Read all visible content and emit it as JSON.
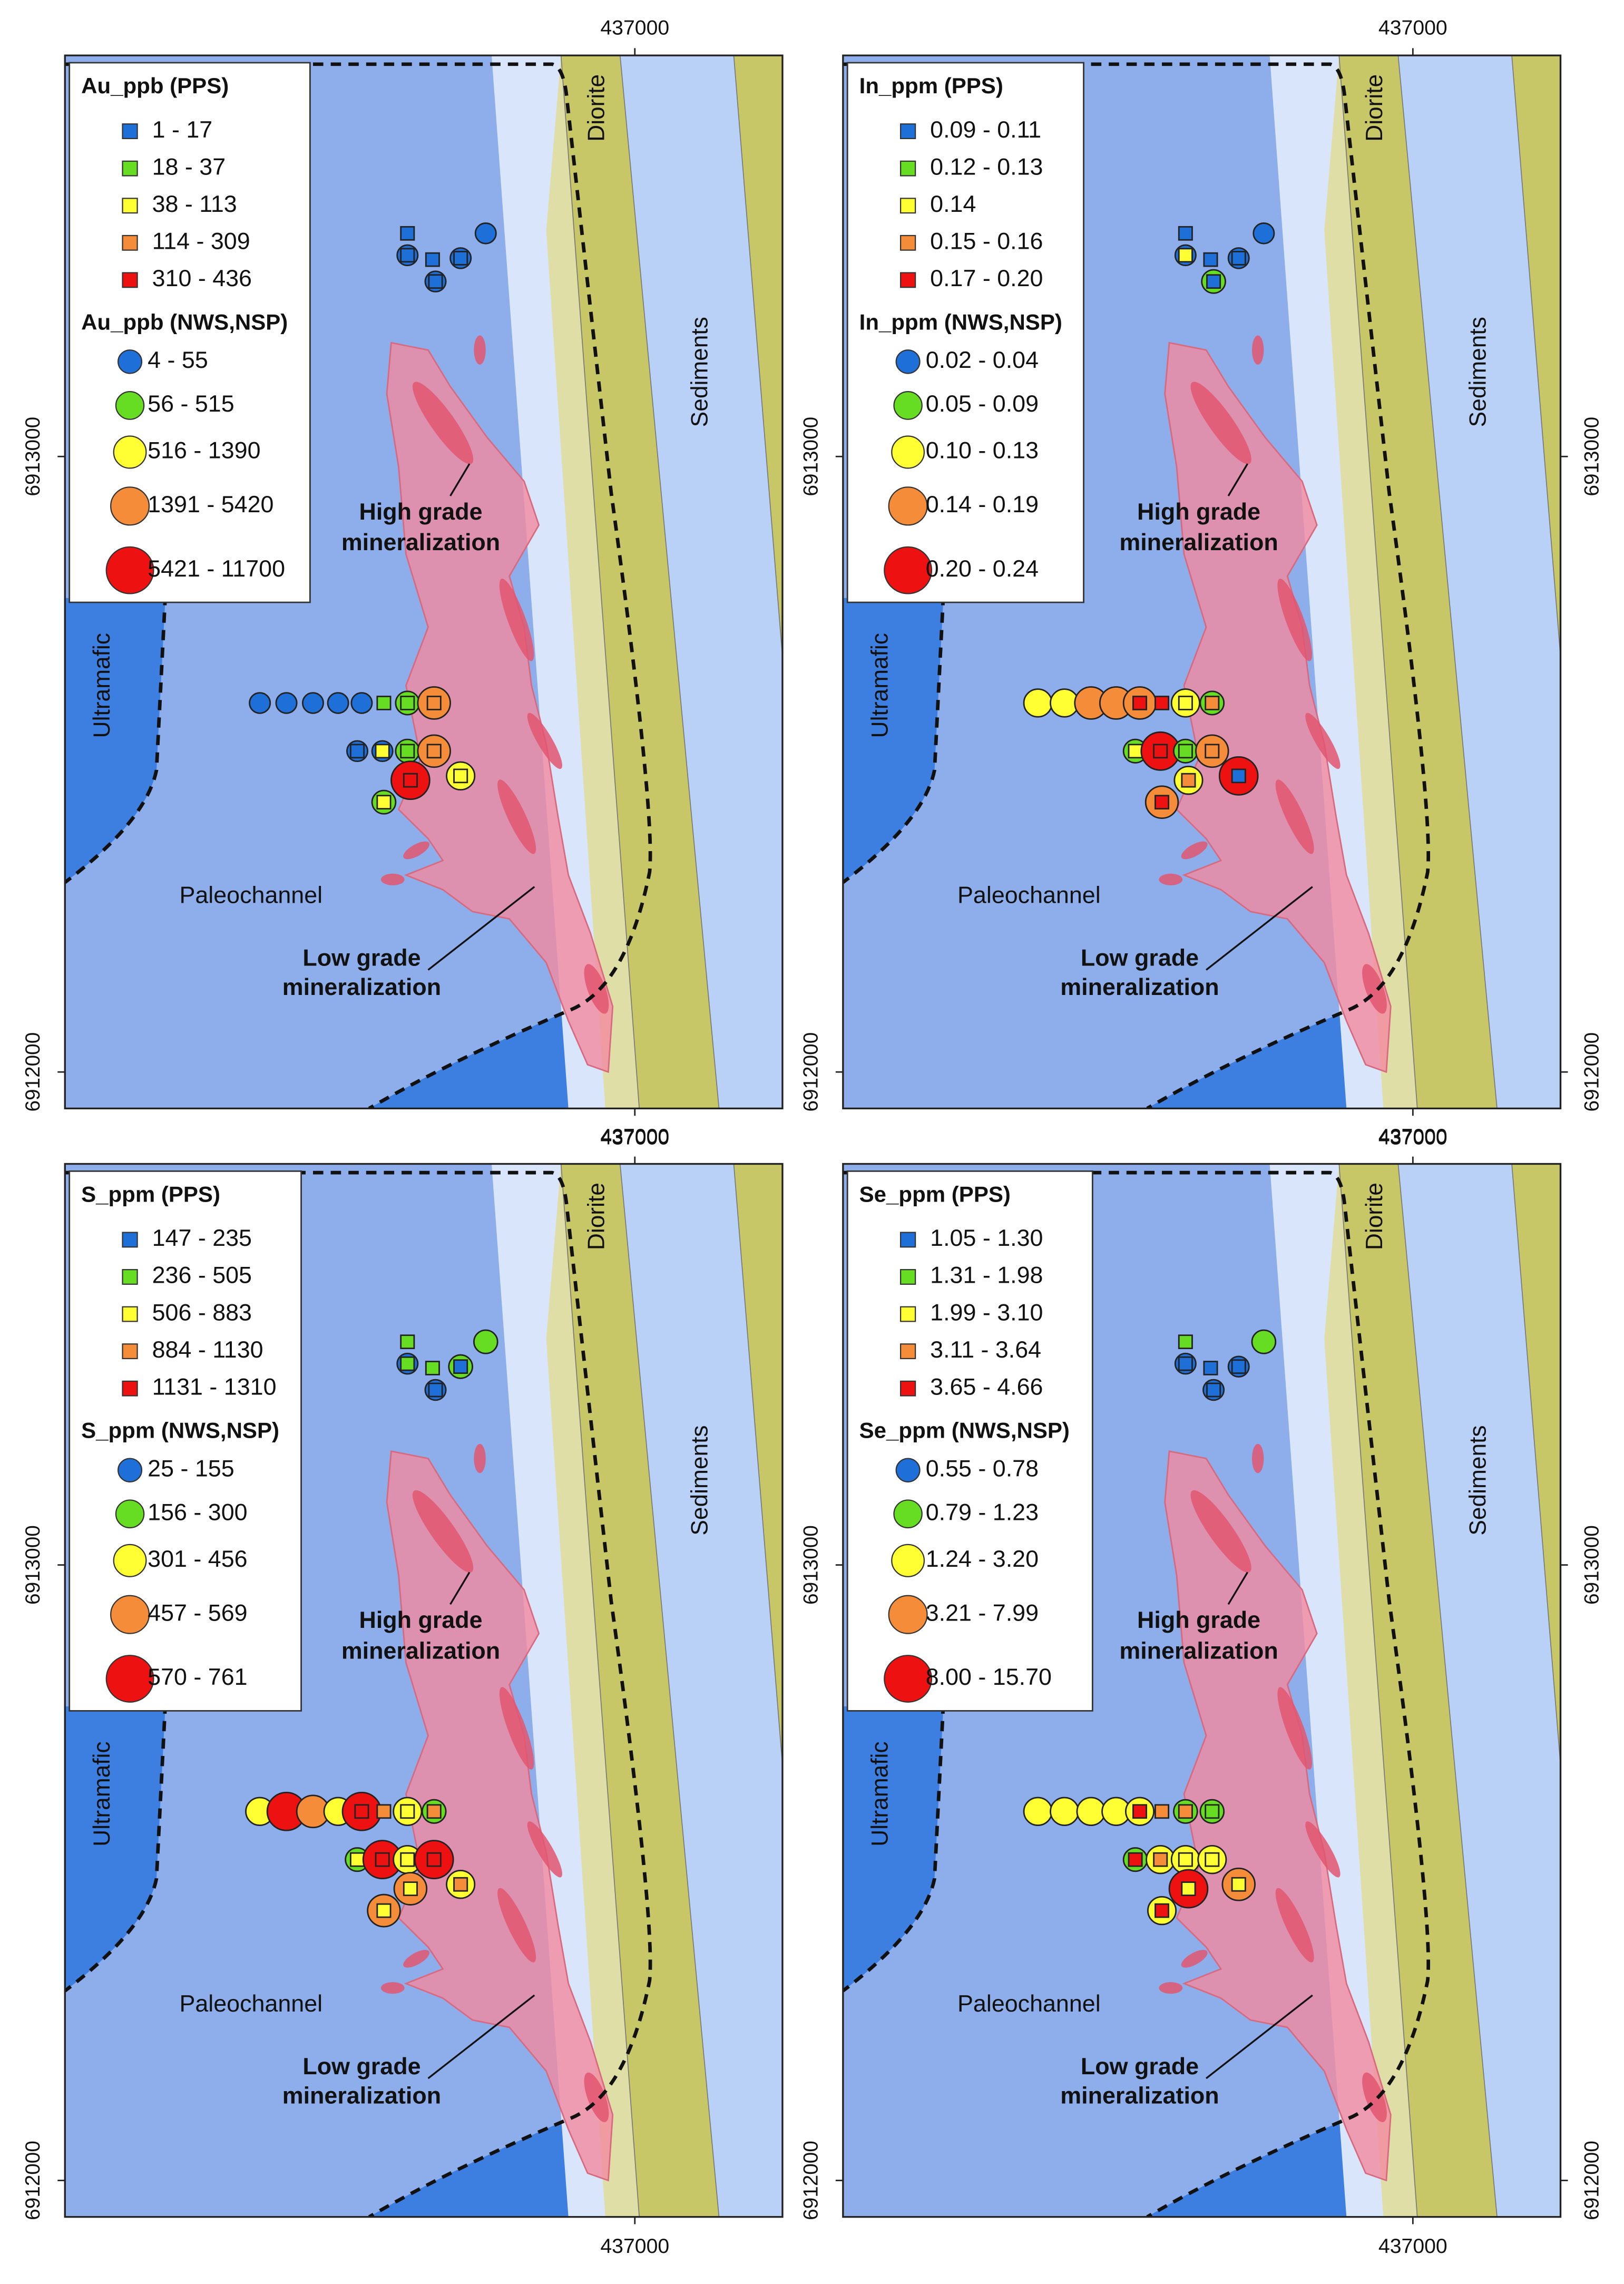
{
  "class_colors": [
    "#1f6fd8",
    "#66dd22",
    "#ffff33",
    "#f58c3a",
    "#ee1111"
  ],
  "panels": [
    {
      "legend_pps": {
        "title": "Au_ppb (PPS)",
        "items": [
          "1 - 17",
          "18 - 37",
          "38 - 113",
          "114 - 309",
          "310 - 436"
        ]
      },
      "legend_nws": {
        "title": "Au_ppb (NWS,NSP)",
        "items": [
          "4 - 55",
          "56 - 515",
          "516 - 1390",
          "1391 - 5420",
          "5421 - 11700"
        ]
      }
    },
    {
      "legend_pps": {
        "title": "In_ppm (PPS)",
        "items": [
          "0.09 - 0.11",
          "0.12 - 0.13",
          "0.14",
          "0.15 - 0.16",
          "0.17 - 0.20"
        ]
      },
      "legend_nws": {
        "title": "In_ppm (NWS,NSP)",
        "items": [
          "0.02 - 0.04",
          "0.05 - 0.09",
          "0.10 - 0.13",
          "0.14 - 0.19",
          "0.20 - 0.24"
        ]
      }
    },
    {
      "legend_pps": {
        "title": "S_ppm (PPS)",
        "items": [
          "147 - 235",
          "236 - 505",
          "506 - 883",
          "884 - 1130",
          "1131 - 1310"
        ]
      },
      "legend_nws": {
        "title": "S_ppm (NWS,NSP)",
        "items": [
          "25 - 155",
          "156 - 300",
          "301 - 456",
          "457 - 569",
          "570 - 761"
        ]
      }
    },
    {
      "legend_pps": {
        "title": "Se_ppm (PPS)",
        "items": [
          "1.05 - 1.30",
          "1.31 - 1.98",
          "1.99 - 3.10",
          "3.11 - 3.64",
          "3.65 - 4.66"
        ]
      },
      "legend_nws": {
        "title": "Se_ppm (NWS,NSP)",
        "items": [
          "0.55 - 0.78",
          "0.79 - 1.23",
          "1.24 - 3.20",
          "3.21 - 7.99",
          "8.00 - 15.70"
        ]
      }
    }
  ],
  "map_labels": {
    "diorite": "Diorite",
    "sediments": "Sediments",
    "ultramafic": "Ultramafic",
    "paleochannel": "Paleochannel",
    "high_grade": [
      "High grade",
      "mineralization"
    ],
    "low_grade": [
      "Low grade",
      "mineralization"
    ]
  },
  "coordinates": {
    "easting": 437000,
    "northings": [
      6913000,
      6912000
    ]
  }
}
